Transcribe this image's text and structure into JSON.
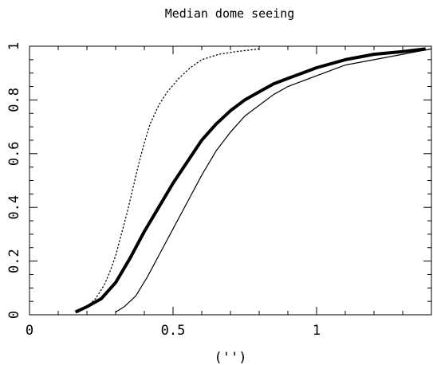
{
  "chart_data": {
    "type": "line",
    "title": "Median dome seeing",
    "xlabel": "('')",
    "ylabel": "",
    "xlim": [
      0,
      1.4
    ],
    "ylim": [
      0,
      1
    ],
    "grid": false,
    "x_ticks": [
      {
        "value": 0,
        "label": "0"
      },
      {
        "value": 0.5,
        "label": "0.5"
      },
      {
        "value": 1,
        "label": "1"
      }
    ],
    "y_ticks": [
      {
        "value": 0,
        "label": "0"
      },
      {
        "value": 0.2,
        "label": "0.2"
      },
      {
        "value": 0.4,
        "label": "0.4"
      },
      {
        "value": 0.6,
        "label": "0.6"
      },
      {
        "value": 0.8,
        "label": "0.8"
      },
      {
        "value": 1,
        "label": "1"
      }
    ],
    "series": [
      {
        "style": "dotted",
        "color": "#000000",
        "points": [
          [
            0.17,
            0.01
          ],
          [
            0.2,
            0.03
          ],
          [
            0.23,
            0.06
          ],
          [
            0.26,
            0.11
          ],
          [
            0.28,
            0.16
          ],
          [
            0.3,
            0.22
          ],
          [
            0.32,
            0.3
          ],
          [
            0.34,
            0.38
          ],
          [
            0.36,
            0.47
          ],
          [
            0.38,
            0.56
          ],
          [
            0.4,
            0.64
          ],
          [
            0.42,
            0.71
          ],
          [
            0.45,
            0.78
          ],
          [
            0.48,
            0.83
          ],
          [
            0.52,
            0.88
          ],
          [
            0.56,
            0.92
          ],
          [
            0.6,
            0.95
          ],
          [
            0.66,
            0.97
          ],
          [
            0.72,
            0.98
          ],
          [
            0.8,
            0.99
          ]
        ]
      },
      {
        "style": "thick",
        "color": "#000000",
        "points": [
          [
            0.16,
            0.01
          ],
          [
            0.2,
            0.03
          ],
          [
            0.25,
            0.06
          ],
          [
            0.3,
            0.12
          ],
          [
            0.35,
            0.21
          ],
          [
            0.4,
            0.31
          ],
          [
            0.45,
            0.4
          ],
          [
            0.5,
            0.49
          ],
          [
            0.55,
            0.57
          ],
          [
            0.6,
            0.65
          ],
          [
            0.65,
            0.71
          ],
          [
            0.7,
            0.76
          ],
          [
            0.75,
            0.8
          ],
          [
            0.8,
            0.83
          ],
          [
            0.85,
            0.86
          ],
          [
            0.9,
            0.88
          ],
          [
            0.95,
            0.9
          ],
          [
            1.0,
            0.92
          ],
          [
            1.1,
            0.95
          ],
          [
            1.2,
            0.97
          ],
          [
            1.3,
            0.98
          ],
          [
            1.38,
            0.99
          ]
        ]
      },
      {
        "style": "thin",
        "color": "#000000",
        "points": [
          [
            0.3,
            0.01
          ],
          [
            0.33,
            0.03
          ],
          [
            0.37,
            0.07
          ],
          [
            0.41,
            0.14
          ],
          [
            0.45,
            0.22
          ],
          [
            0.5,
            0.32
          ],
          [
            0.55,
            0.42
          ],
          [
            0.6,
            0.52
          ],
          [
            0.65,
            0.61
          ],
          [
            0.7,
            0.68
          ],
          [
            0.75,
            0.74
          ],
          [
            0.8,
            0.78
          ],
          [
            0.85,
            0.82
          ],
          [
            0.9,
            0.85
          ],
          [
            0.95,
            0.87
          ],
          [
            1.0,
            0.89
          ],
          [
            1.05,
            0.91
          ],
          [
            1.1,
            0.93
          ],
          [
            1.2,
            0.95
          ],
          [
            1.3,
            0.97
          ],
          [
            1.4,
            0.99
          ]
        ]
      }
    ]
  }
}
